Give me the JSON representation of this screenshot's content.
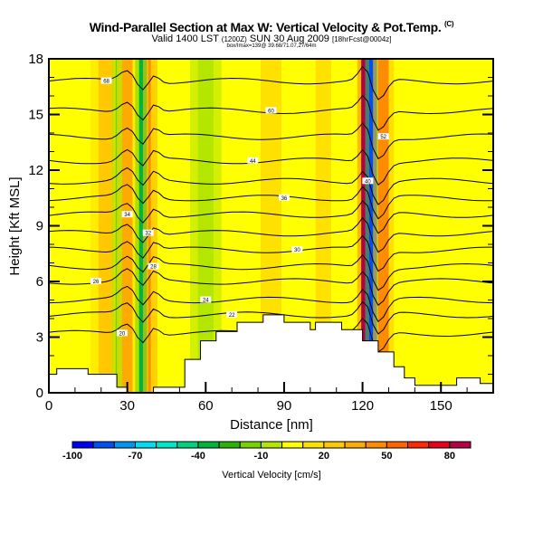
{
  "chart_data": {
    "type": "heatmap",
    "title": "Wind-Parallel Section at Max W: Vertical Velocity & Pot.Temp.",
    "title_units": "(C)",
    "subtitle": "Valid 1400 LST",
    "subtitle_time_z": "(1200Z)",
    "subtitle_date": "SUN 30 Aug 2009",
    "subtitle_run": "[18hrFcst@0004z]",
    "info_line": "box/Imax=139@ 39.68/71.07,27/64m",
    "xlabel": "Distance [nm]",
    "ylabel": "Height [Kft MSL]",
    "xlim": [
      0,
      170
    ],
    "ylim": [
      0,
      18
    ],
    "xticks": [
      "0",
      "30",
      "60",
      "90",
      "120",
      "150"
    ],
    "xtick_values": [
      0,
      30,
      60,
      90,
      120,
      150
    ],
    "yticks": [
      "0",
      "3",
      "6",
      "9",
      "12",
      "15",
      "18"
    ],
    "ytick_values": [
      0,
      3,
      6,
      9,
      12,
      15,
      18
    ],
    "colorbar": {
      "title": "Vertical Velocity [cm/s]",
      "labels": [
        "-100",
        "-70",
        "-40",
        "-10",
        "20",
        "50",
        "80"
      ],
      "label_values": [
        -100,
        -70,
        -40,
        -10,
        20,
        50,
        80
      ],
      "min": -100,
      "max": 90,
      "step": 10,
      "colors": [
        "#0000f0",
        "#0050f0",
        "#0096f0",
        "#00dcf0",
        "#00e6c8",
        "#00d282",
        "#00b43c",
        "#28b400",
        "#78d200",
        "#b4e600",
        "#ffff00",
        "#ffe100",
        "#ffc800",
        "#ffaa00",
        "#ff8c00",
        "#ff6400",
        "#ff2800",
        "#e6001e",
        "#b40046"
      ]
    },
    "bands": [
      {
        "x_center": 6,
        "width": 4,
        "value": 5
      },
      {
        "x_center": 22,
        "width": 6,
        "value": 25
      },
      {
        "x_center": 27,
        "width": 3,
        "value": -15
      },
      {
        "x_center": 30,
        "width": 4,
        "value": 35
      },
      {
        "x_center": 36,
        "width": 3,
        "value": -35
      },
      {
        "x_center": 40,
        "width": 4,
        "value": 40
      },
      {
        "x_center": 44,
        "width": 5,
        "value": 5
      },
      {
        "x_center": 60,
        "width": 6,
        "value": -5
      },
      {
        "x_center": 85,
        "width": 8,
        "value": 15
      },
      {
        "x_center": 105,
        "width": 6,
        "value": 15
      },
      {
        "x_center": 121,
        "width": 3,
        "value": 85
      },
      {
        "x_center": 124,
        "width": 3,
        "value": -85
      },
      {
        "x_center": 128,
        "width": 4,
        "value": 45
      },
      {
        "x_center": 140,
        "width": 5,
        "value": 5
      },
      {
        "x_center": 165,
        "width": 5,
        "value": 5
      }
    ],
    "terrain": [
      [
        0,
        0
      ],
      [
        0,
        1.0
      ],
      [
        3,
        1.0
      ],
      [
        3,
        1.3
      ],
      [
        15,
        1.3
      ],
      [
        15,
        1.0
      ],
      [
        26,
        1.0
      ],
      [
        26,
        0.3
      ],
      [
        30,
        0.3
      ],
      [
        30,
        0
      ],
      [
        40,
        0
      ],
      [
        40,
        0.3
      ],
      [
        52,
        0.3
      ],
      [
        52,
        1.8
      ],
      [
        58,
        1.8
      ],
      [
        58,
        2.8
      ],
      [
        64,
        2.8
      ],
      [
        64,
        3.3
      ],
      [
        72,
        3.3
      ],
      [
        72,
        3.8
      ],
      [
        82,
        3.8
      ],
      [
        82,
        4.2
      ],
      [
        90,
        4.2
      ],
      [
        90,
        3.8
      ],
      [
        100,
        3.8
      ],
      [
        100,
        3.4
      ],
      [
        102,
        3.4
      ],
      [
        102,
        3.8
      ],
      [
        112,
        3.8
      ],
      [
        112,
        3.4
      ],
      [
        120,
        3.4
      ],
      [
        120,
        2.8
      ],
      [
        126,
        2.8
      ],
      [
        126,
        2.2
      ],
      [
        132,
        2.2
      ],
      [
        132,
        1.4
      ],
      [
        136,
        1.4
      ],
      [
        136,
        0.8
      ],
      [
        140,
        0.8
      ],
      [
        140,
        0.4
      ],
      [
        156,
        0.4
      ],
      [
        156,
        0.8
      ],
      [
        165,
        0.8
      ],
      [
        165,
        0.5
      ],
      [
        170,
        0.5
      ],
      [
        170,
        0
      ]
    ],
    "contours": [
      {
        "level": 68,
        "y": 16.8,
        "label_at": 22
      },
      {
        "level": 60,
        "y": 15.2,
        "label_at": 85
      },
      {
        "level": 52,
        "y": 13.8,
        "label_at": 128
      },
      {
        "level": 44,
        "y": 12.5,
        "label_at": 78
      },
      {
        "level": 40,
        "y": 11.4,
        "label_at": 122
      },
      {
        "level": 36,
        "y": 10.5,
        "label_at": 90
      },
      {
        "level": 34,
        "y": 9.6,
        "label_at": 30
      },
      {
        "level": 32,
        "y": 8.6,
        "label_at": 38
      },
      {
        "level": 30,
        "y": 7.7,
        "label_at": 95
      },
      {
        "level": 28,
        "y": 6.8,
        "label_at": 40
      },
      {
        "level": 26,
        "y": 6.0,
        "label_at": 18
      },
      {
        "level": 24,
        "y": 5.0,
        "label_at": 60
      },
      {
        "level": 22,
        "y": 4.2,
        "label_at": 70
      },
      {
        "level": 20,
        "y": 3.2,
        "label_at": 28
      }
    ],
    "contour_labels": [
      "68",
      "60",
      "52",
      "44",
      "40",
      "36",
      "34",
      "32",
      "30",
      "28",
      "26",
      "24",
      "22",
      "20"
    ]
  }
}
